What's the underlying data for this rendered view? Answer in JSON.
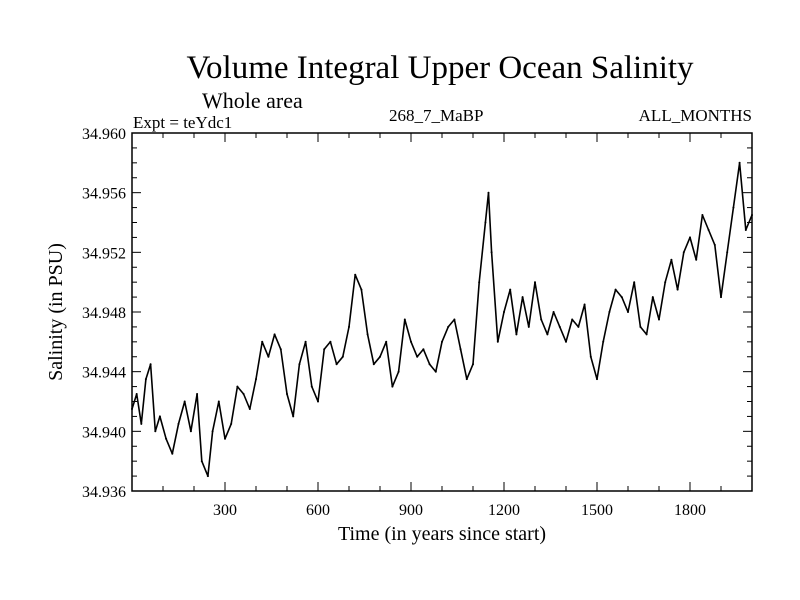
{
  "chart_data": {
    "type": "line",
    "title": "Volume Integral Upper Ocean Salinity",
    "subtitle": "Whole area",
    "left_label": "Expt = teYdc1",
    "center_label": "268_7_MaBP",
    "right_label": "ALL_MONTHS",
    "xlabel": "Time (in years since start)",
    "ylabel": "Salinity (in PSU)",
    "xlim": [
      0,
      2000
    ],
    "ylim": [
      34.936,
      34.96
    ],
    "xticks": [
      300,
      600,
      900,
      1200,
      1500,
      1800
    ],
    "xtick_labels": [
      "300",
      "600",
      "900",
      "1200",
      "1500",
      "1800"
    ],
    "yticks": [
      34.936,
      34.94,
      34.944,
      34.948,
      34.952,
      34.956,
      34.96
    ],
    "ytick_labels": [
      "34.936",
      "34.940",
      "34.944",
      "34.948",
      "34.952",
      "34.956",
      "34.960"
    ],
    "grid": false,
    "series": [
      {
        "name": "salinity",
        "x": [
          0,
          15,
          30,
          45,
          60,
          75,
          90,
          110,
          130,
          150,
          170,
          190,
          210,
          225,
          245,
          260,
          280,
          300,
          320,
          340,
          360,
          380,
          400,
          420,
          440,
          460,
          480,
          500,
          520,
          540,
          560,
          580,
          600,
          620,
          640,
          660,
          680,
          700,
          720,
          740,
          760,
          780,
          800,
          820,
          840,
          860,
          880,
          900,
          920,
          940,
          960,
          980,
          1000,
          1020,
          1040,
          1060,
          1080,
          1100,
          1120,
          1140,
          1150,
          1160,
          1180,
          1200,
          1220,
          1240,
          1260,
          1280,
          1300,
          1320,
          1340,
          1360,
          1380,
          1400,
          1420,
          1440,
          1460,
          1480,
          1500,
          1520,
          1540,
          1560,
          1580,
          1600,
          1620,
          1640,
          1660,
          1680,
          1700,
          1720,
          1740,
          1760,
          1780,
          1800,
          1820,
          1840,
          1860,
          1880,
          1900,
          1920,
          1940,
          1960,
          1980,
          2000
        ],
        "values": [
          34.9415,
          34.9425,
          34.9405,
          34.9435,
          34.9445,
          34.94,
          34.941,
          34.9395,
          34.9385,
          34.9405,
          34.942,
          34.94,
          34.9425,
          34.938,
          34.937,
          34.94,
          34.942,
          34.9395,
          34.9405,
          34.943,
          34.9425,
          34.9415,
          34.9435,
          34.946,
          34.945,
          34.9465,
          34.9455,
          34.9425,
          34.941,
          34.9445,
          34.946,
          34.943,
          34.942,
          34.9455,
          34.946,
          34.9445,
          34.945,
          34.947,
          34.9505,
          34.9495,
          34.9465,
          34.9445,
          34.945,
          34.946,
          34.943,
          34.944,
          34.9475,
          34.946,
          34.945,
          34.9455,
          34.9445,
          34.944,
          34.946,
          34.947,
          34.9475,
          34.9455,
          34.9435,
          34.9445,
          34.95,
          34.954,
          34.956,
          34.952,
          34.946,
          34.948,
          34.9495,
          34.9465,
          34.949,
          34.947,
          34.95,
          34.9475,
          34.9465,
          34.948,
          34.947,
          34.946,
          34.9475,
          34.947,
          34.9485,
          34.945,
          34.9435,
          34.946,
          34.948,
          34.9495,
          34.949,
          34.948,
          34.95,
          34.947,
          34.9465,
          34.949,
          34.9475,
          34.95,
          34.9515,
          34.9495,
          34.952,
          34.953,
          34.9515,
          34.9545,
          34.9535,
          34.9525,
          34.949,
          34.952,
          34.955,
          34.958,
          34.9535,
          34.9545
        ]
      }
    ]
  }
}
